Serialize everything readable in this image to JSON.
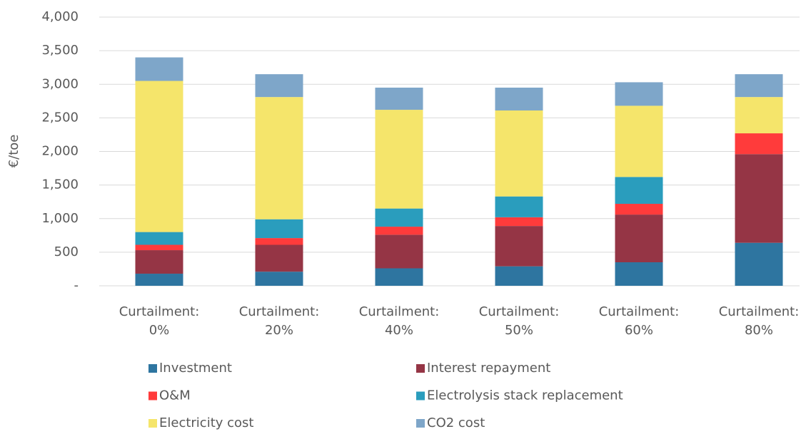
{
  "chart_data": {
    "type": "stacked_bar",
    "y_label": "€/toe",
    "categories": [
      "Curtailment: 0%",
      "Curtailment: 20%",
      "Curtailment: 40%",
      "Curtailment: 50%",
      "Curtailment: 60%",
      "Curtailment: 80%"
    ],
    "series": [
      {
        "name": "Investment",
        "color": "#2e75a0",
        "values": [
          180,
          210,
          260,
          290,
          350,
          640
        ]
      },
      {
        "name": "Interest repayment",
        "color": "#953545",
        "values": [
          350,
          400,
          500,
          600,
          710,
          1320
        ]
      },
      {
        "name": "O&M",
        "color": "#ff3b3b",
        "values": [
          80,
          100,
          120,
          130,
          160,
          310
        ]
      },
      {
        "name": "Electrolysis stack replacement",
        "color": "#2a9dbd",
        "values": [
          190,
          280,
          270,
          310,
          400,
          0
        ]
      },
      {
        "name": "Electricity cost",
        "color": "#f5e56b",
        "values": [
          2250,
          1820,
          1470,
          1280,
          1060,
          540
        ]
      },
      {
        "name": "CO2 cost",
        "color": "#7ea6c9",
        "values": [
          350,
          340,
          330,
          340,
          350,
          340
        ]
      }
    ],
    "ylim": [
      0,
      4000
    ],
    "yticks": [
      {
        "value": 0,
        "label": "-"
      },
      500,
      {
        "value": 1000,
        "label": "1,000"
      },
      {
        "value": 1500,
        "label": "1,500"
      },
      {
        "value": 2000,
        "label": "2,000"
      },
      {
        "value": 2500,
        "label": "2,500"
      },
      {
        "value": 3000,
        "label": "3,000"
      },
      {
        "value": 3500,
        "label": "3,500"
      },
      {
        "value": 4000,
        "label": "4,000"
      }
    ],
    "grid": true,
    "legend": "bottom"
  }
}
